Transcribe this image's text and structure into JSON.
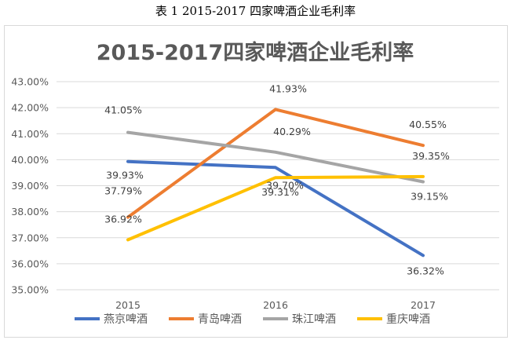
{
  "caption": "表 1  2015-2017 四家啤酒企业毛利率",
  "chart_data": {
    "type": "line",
    "title": "2015-2017四家啤酒企业毛利率",
    "xlabel": "",
    "ylabel": "",
    "categories": [
      "2015",
      "2016",
      "2017"
    ],
    "ylim": [
      35.0,
      43.0
    ],
    "yticks": [
      "35.00%",
      "36.00%",
      "37.00%",
      "38.00%",
      "39.00%",
      "40.00%",
      "41.00%",
      "42.00%",
      "43.00%"
    ],
    "grid": true,
    "legend_position": "bottom",
    "series": [
      {
        "name": "燕京啤酒",
        "color": "#4472C4",
        "values": [
          39.93,
          39.7,
          36.32
        ],
        "labels": [
          "39.93%",
          "39.70%",
          "36.32%"
        ]
      },
      {
        "name": "青岛啤酒",
        "color": "#ED7D31",
        "values": [
          37.79,
          41.93,
          40.55
        ],
        "labels": [
          "37.79%",
          "41.93%",
          "40.55%"
        ]
      },
      {
        "name": "珠江啤酒",
        "color": "#A5A5A5",
        "values": [
          41.05,
          40.29,
          39.15
        ],
        "labels": [
          "41.05%",
          "40.29%",
          "39.15%"
        ]
      },
      {
        "name": "重庆啤酒",
        "color": "#FFC000",
        "values": [
          36.92,
          39.31,
          39.35
        ],
        "labels": [
          "36.92%",
          "39.31%",
          "39.35%"
        ]
      }
    ]
  }
}
